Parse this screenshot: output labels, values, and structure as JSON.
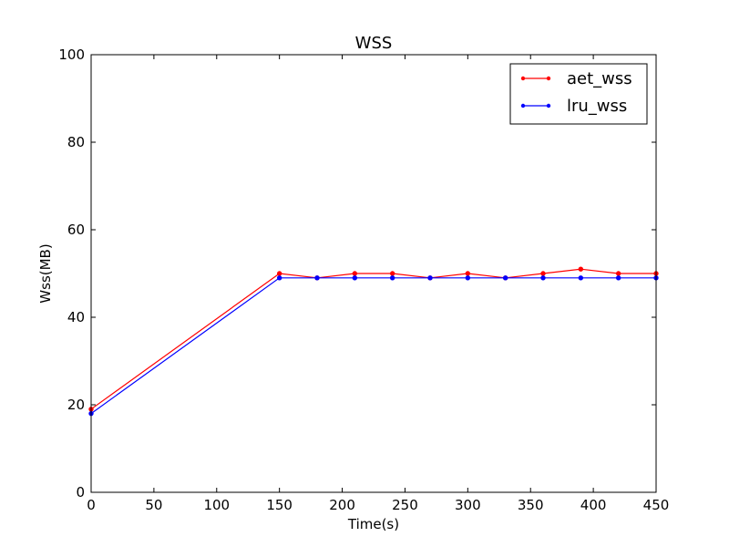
{
  "chart_data": {
    "type": "line",
    "title": "WSS",
    "xlabel": "Time(s)",
    "ylabel": "Wss(MB)",
    "xlim": [
      0,
      450
    ],
    "ylim": [
      0,
      100
    ],
    "xticks": [
      0,
      50,
      100,
      150,
      200,
      250,
      300,
      350,
      400,
      450
    ],
    "yticks": [
      0,
      20,
      40,
      60,
      80,
      100
    ],
    "grid": false,
    "legend_position": "top-right",
    "series": [
      {
        "name": "aet_wss",
        "color": "#ff0000",
        "x": [
          0,
          150,
          180,
          210,
          240,
          270,
          300,
          330,
          360,
          390,
          420,
          450
        ],
        "y": [
          19,
          50,
          49,
          50,
          50,
          49,
          50,
          49,
          50,
          51,
          50,
          50
        ]
      },
      {
        "name": "lru_wss",
        "color": "#0000ff",
        "x": [
          0,
          150,
          180,
          210,
          240,
          270,
          300,
          330,
          360,
          390,
          420,
          450
        ],
        "y": [
          18,
          49,
          49,
          49,
          49,
          49,
          49,
          49,
          49,
          49,
          49,
          49
        ]
      }
    ]
  }
}
